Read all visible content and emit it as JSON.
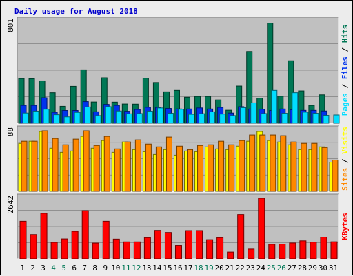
{
  "chart_data": {
    "title": "Daily usage for August 2018",
    "type": "bar",
    "days": [
      "1",
      "2",
      "3",
      "4",
      "5",
      "6",
      "7",
      "8",
      "9",
      "10",
      "11",
      "12",
      "13",
      "14",
      "15",
      "16",
      "17",
      "18",
      "19",
      "20",
      "21",
      "22",
      "23",
      "24",
      "25",
      "26",
      "27",
      "28",
      "29",
      "30",
      "31"
    ],
    "weekend_days": [
      "4",
      "5",
      "11",
      "12",
      "18",
      "19",
      "25",
      "26"
    ],
    "colors": {
      "hits": "#007755",
      "files": "#0033ee",
      "pages": "#00ddff",
      "visits": "#ffff00",
      "sites": "#ff8800",
      "kbytes": "#ff0000",
      "title": "#0000cc",
      "weekday_tick": "#000000",
      "weekend_tick": "#007755",
      "plot_bg": "#c0c0c0"
    },
    "panels": [
      {
        "id": "hits-files-pages",
        "ymax_label": "801",
        "legend": [
          {
            "name": "Pages",
            "color": "#00ddff"
          },
          {
            "name": "Files",
            "color": "#0033ee"
          },
          {
            "name": "Hits",
            "color": "#007755"
          }
        ],
        "ymax": 801,
        "series": [
          {
            "name": "Hits",
            "color": "#007755",
            "values": [
              351,
              350,
              333,
              240,
              133,
              290,
              420,
              167,
              357,
              166,
              151,
              150,
              354,
              320,
              247,
              258,
              204,
              210,
              210,
              183,
              102,
              292,
              564,
              197,
              787,
              212,
              491,
              254,
              140,
              223,
              0
            ]
          },
          {
            "name": "Files",
            "color": "#0033ee",
            "values": [
              140,
              140,
              200,
              86,
              100,
              100,
              170,
              90,
              148,
              140,
              94,
              108,
              125,
              124,
              116,
              112,
              112,
              120,
              112,
              124,
              80,
              130,
              112,
              110,
              100,
              112,
              106,
              101,
              101,
              96,
              0
            ]
          },
          {
            "name": "Pages",
            "color": "#00ddff",
            "values": [
              80,
              95,
              110,
              67,
              50,
              85,
              128,
              60,
              130,
              96,
              74,
              76,
              95,
              120,
              78,
              110,
              70,
              75,
              90,
              72,
              60,
              122,
              160,
              76,
              258,
              78,
              240,
              87,
              78,
              62,
              65
            ]
          }
        ]
      },
      {
        "id": "visits-sites",
        "ymax_label": "88",
        "legend": [
          {
            "name": "Sites",
            "color": "#ff8800"
          },
          {
            "name": "Visits",
            "color": "#ffff00"
          }
        ],
        "ymax": 88,
        "series": [
          {
            "name": "Visits",
            "color": "#ffff00",
            "values": [
              69,
              72,
              86,
              62,
              56,
              58,
              79,
              62,
              73,
              56,
              71,
              60,
              57,
              53,
              60,
              52,
              58,
              57,
              64,
              61,
              60,
              65,
              72,
              86,
              73,
              71,
              67,
              60,
              60,
              64,
              42
            ]
          },
          {
            "name": "Sites",
            "color": "#ff8800",
            "values": [
              72,
              72,
              87,
              76,
              67,
              75,
              87,
              66,
              79,
              61,
              71,
              74,
              68,
              64,
              78,
              65,
              60,
              66,
              67,
              72,
              67,
              73,
              81,
              81,
              81,
              80,
              71,
              69,
              69,
              63,
              45
            ]
          }
        ]
      },
      {
        "id": "kbytes",
        "ymax_label": "2642",
        "legend": [
          {
            "name": "KBytes",
            "color": "#ff0000"
          }
        ],
        "ymax": 2642,
        "series": [
          {
            "name": "KBytes",
            "color": "#ff0000",
            "values": [
              1640,
              1058,
              1984,
              720,
              868,
              1198,
              2100,
              688,
              1640,
              860,
              742,
              742,
              922,
              1240,
              1150,
              584,
              1230,
              1231,
              837,
              922,
              297,
              1932,
              423,
              2642,
              636,
              644,
              693,
              786,
              732,
              944,
              746
            ]
          }
        ]
      }
    ],
    "grid": true
  }
}
